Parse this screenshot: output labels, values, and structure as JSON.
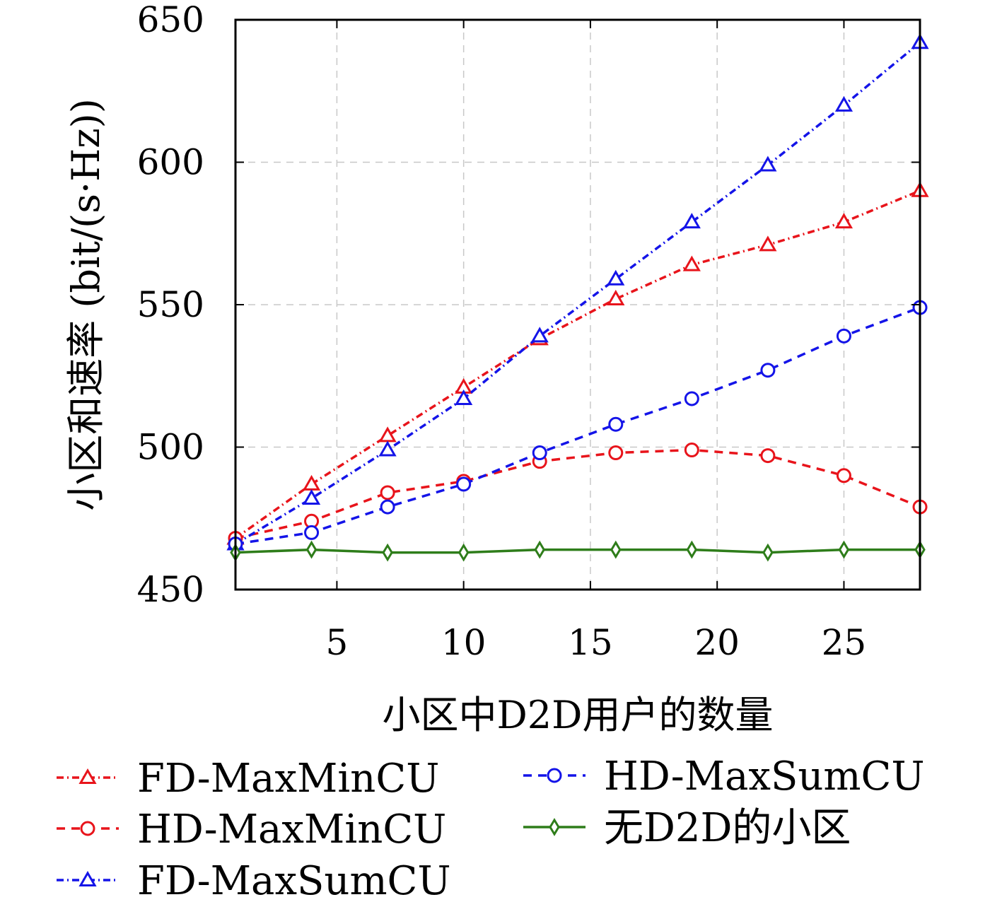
{
  "chart_data": {
    "type": "line",
    "xlabel": "小区中D2D用户的数量",
    "ylabel": "小区和速率 (bit/(s·Hz))",
    "xlim": [
      1,
      28
    ],
    "ylim": [
      450,
      650
    ],
    "xticks": [
      5,
      10,
      15,
      20,
      25
    ],
    "yticks": [
      450,
      500,
      550,
      600,
      650
    ],
    "grid": true,
    "legend_position": "bottom",
    "x": [
      1,
      4,
      7,
      10,
      13,
      16,
      19,
      22,
      25,
      28
    ],
    "series": [
      {
        "name": "FD-MaxMinCU",
        "color": "#e8141b",
        "dash": "dashdot",
        "marker": "triangle",
        "values": [
          468,
          487,
          504,
          521,
          538,
          552,
          564,
          571,
          579,
          590
        ]
      },
      {
        "name": "HD-MaxMinCU",
        "color": "#e8141b",
        "dash": "dashed",
        "marker": "circle",
        "values": [
          468,
          474,
          484,
          488,
          495,
          498,
          499,
          497,
          490,
          479
        ]
      },
      {
        "name": "FD-MaxSumCU",
        "color": "#1414e8",
        "dash": "dashdot",
        "marker": "triangle",
        "values": [
          466,
          482,
          499,
          517,
          539,
          559,
          579,
          599,
          620,
          642
        ]
      },
      {
        "name": "HD-MaxSumCU",
        "color": "#1414e8",
        "dash": "dashed",
        "marker": "circle",
        "values": [
          466,
          470,
          479,
          487,
          498,
          508,
          517,
          527,
          539,
          549
        ]
      },
      {
        "name": "无D2D的小区",
        "color": "#2e7d1a",
        "dash": "solid",
        "marker": "diamond",
        "values": [
          463,
          464,
          463,
          463,
          464,
          464,
          464,
          463,
          464,
          464
        ]
      }
    ]
  }
}
